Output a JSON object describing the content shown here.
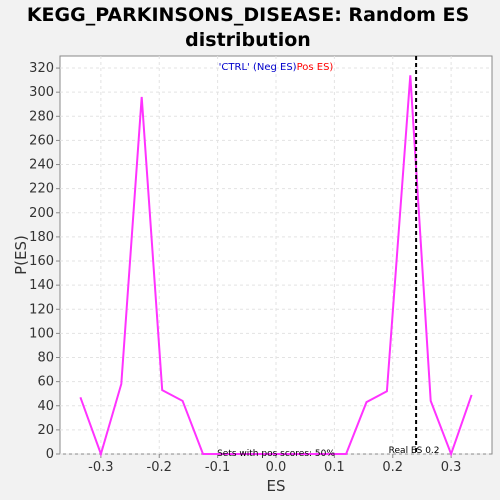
{
  "chart_data": {
    "type": "line",
    "title_line1": "KEGG_PARKINSONS_DISEASE: Random ES",
    "title_line2": "distribution",
    "xlabel": "ES",
    "ylabel": "P(ES)",
    "xlim": [
      -0.37,
      0.37
    ],
    "ylim": [
      0,
      330
    ],
    "xticks": [
      -0.3,
      -0.2,
      -0.1,
      0.0,
      0.1,
      0.2,
      0.3
    ],
    "xtick_labels": [
      "-0.3",
      "-0.2",
      "-0.1",
      "0.0",
      "0.1",
      "0.2",
      "0.3"
    ],
    "yticks": [
      0,
      20,
      40,
      60,
      80,
      100,
      120,
      140,
      160,
      180,
      200,
      220,
      240,
      260,
      280,
      300,
      320
    ],
    "ytick_labels": [
      "0",
      "20",
      "40",
      "60",
      "80",
      "100",
      "120",
      "140",
      "160",
      "180",
      "200",
      "220",
      "240",
      "260",
      "280",
      "300",
      "320"
    ],
    "grid": true,
    "legend": {
      "placement": "top-center",
      "neg_label": "'CTRL' (Neg ES)",
      "pos_label": "Pos ES)",
      "neg_color": "#0000cc",
      "pos_color": "#ff0000"
    },
    "series": [
      {
        "color": "#ff33ff",
        "x": [
          -0.335,
          -0.3,
          -0.265,
          -0.23,
          -0.195,
          -0.16,
          -0.125,
          -0.09,
          -0.055,
          -0.02,
          0.015,
          0.05,
          0.085,
          0.12,
          0.155,
          0.19,
          0.23,
          0.265,
          0.3,
          0.335
        ],
        "y": [
          47,
          0,
          58,
          296,
          53,
          44,
          0,
          0,
          0,
          0,
          0,
          0,
          0,
          0,
          43,
          52,
          314,
          44,
          0,
          49
        ]
      }
    ],
    "real_es": {
      "value": 0.24,
      "label": "Real ES 0.2",
      "color": "#000000"
    },
    "annotation": "Sets with pos scores: 50%"
  }
}
